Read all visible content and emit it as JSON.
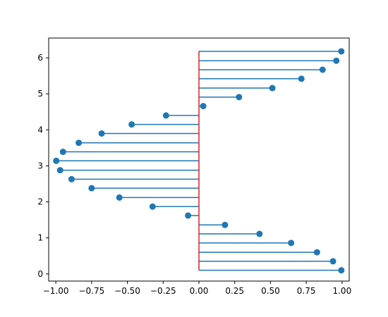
{
  "chart_data": {
    "type": "stem",
    "orientation": "horizontal",
    "title": "",
    "xlabel": "",
    "ylabel": "",
    "xlim": [
      -1.05,
      1.05
    ],
    "ylim": [
      -0.2,
      6.55
    ],
    "xticks": [
      -1.0,
      -0.75,
      -0.5,
      -0.25,
      0.0,
      0.25,
      0.5,
      0.75,
      1.0
    ],
    "xtick_labels": [
      "−1.00",
      "−0.75",
      "−0.50",
      "−0.25",
      "0.00",
      "0.25",
      "0.50",
      "0.75",
      "1.00"
    ],
    "yticks": [
      0,
      1,
      2,
      3,
      4,
      5,
      6
    ],
    "ytick_labels": [
      "0",
      "1",
      "2",
      "3",
      "4",
      "5",
      "6"
    ],
    "baseline": 0,
    "grid": false,
    "colors": {
      "stem": "#1f77b4",
      "marker": "#1f77b4",
      "baseline": "#d62728"
    },
    "points": [
      {
        "y": 0.1,
        "x": 0.995
      },
      {
        "y": 0.35,
        "x": 0.937
      },
      {
        "y": 0.6,
        "x": 0.825
      },
      {
        "y": 0.86,
        "x": 0.644
      },
      {
        "y": 1.11,
        "x": 0.423
      },
      {
        "y": 1.36,
        "x": 0.182
      },
      {
        "y": 1.62,
        "x": -0.076
      },
      {
        "y": 1.87,
        "x": -0.324
      },
      {
        "y": 2.12,
        "x": -0.556
      },
      {
        "y": 2.38,
        "x": -0.75
      },
      {
        "y": 2.63,
        "x": -0.89
      },
      {
        "y": 2.88,
        "x": -0.97
      },
      {
        "y": 3.14,
        "x": -0.997
      },
      {
        "y": 3.39,
        "x": -0.95
      },
      {
        "y": 3.64,
        "x": -0.84
      },
      {
        "y": 3.9,
        "x": -0.68
      },
      {
        "y": 4.15,
        "x": -0.47
      },
      {
        "y": 4.4,
        "x": -0.23
      },
      {
        "y": 4.66,
        "x": 0.03
      },
      {
        "y": 4.91,
        "x": 0.28
      },
      {
        "y": 5.16,
        "x": 0.513
      },
      {
        "y": 5.42,
        "x": 0.716
      },
      {
        "y": 5.67,
        "x": 0.864
      },
      {
        "y": 5.92,
        "x": 0.96
      },
      {
        "y": 6.18,
        "x": 0.995
      }
    ]
  }
}
